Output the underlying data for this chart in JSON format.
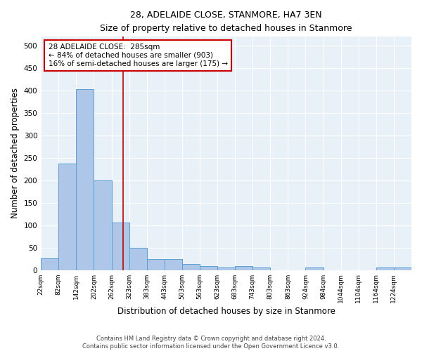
{
  "title": "28, ADELAIDE CLOSE, STANMORE, HA7 3EN",
  "subtitle": "Size of property relative to detached houses in Stanmore",
  "xlabel": "Distribution of detached houses by size in Stanmore",
  "ylabel": "Number of detached properties",
  "bin_labels": [
    "22sqm",
    "82sqm",
    "142sqm",
    "202sqm",
    "262sqm",
    "323sqm",
    "383sqm",
    "443sqm",
    "503sqm",
    "563sqm",
    "623sqm",
    "683sqm",
    "743sqm",
    "803sqm",
    "863sqm",
    "924sqm",
    "984sqm",
    "1044sqm",
    "1104sqm",
    "1164sqm",
    "1224sqm"
  ],
  "bar_heights": [
    26,
    238,
    403,
    200,
    105,
    49,
    25,
    25,
    13,
    8,
    5,
    8,
    5,
    0,
    0,
    5,
    0,
    0,
    0,
    5,
    5
  ],
  "bar_color": "#aec6e8",
  "bar_edgecolor": "#5a9fd4",
  "vline_x": 4.65,
  "vline_color": "#cc0000",
  "ylim": [
    0,
    520
  ],
  "yticks": [
    0,
    50,
    100,
    150,
    200,
    250,
    300,
    350,
    400,
    450,
    500
  ],
  "annotation_text": "28 ADELAIDE CLOSE:  285sqm\n← 84% of detached houses are smaller (903)\n16% of semi-detached houses are larger (175) →",
  "annotation_box_color": "#ffffff",
  "annotation_box_edgecolor": "#cc0000",
  "bg_color": "#e8f0f8",
  "footer_line1": "Contains HM Land Registry data © Crown copyright and database right 2024.",
  "footer_line2": "Contains public sector information licensed under the Open Government Licence v3.0."
}
